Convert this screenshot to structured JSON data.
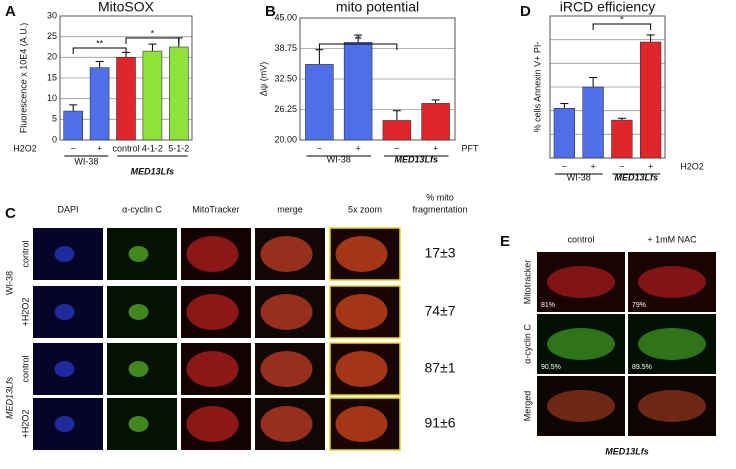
{
  "chart_data": [
    {
      "type": "bar",
      "panel": "A",
      "title": "MitoSOX",
      "ylabel": "Fluorescence x 10E4 (A.U.)",
      "treatment": "H2O2",
      "categories": [
        "−",
        "+",
        "control",
        "4-1-2",
        "5-1-2"
      ],
      "values": [
        7,
        17.5,
        20,
        21.5,
        22.5
      ],
      "errors": [
        1.5,
        1.5,
        1.2,
        1.7,
        2.2
      ],
      "colors": [
        "#4f6fe8",
        "#4f6fe8",
        "#e0262a",
        "#8fe23a",
        "#8fe23a"
      ],
      "groups": [
        "WI-38",
        "MED13Lfs"
      ],
      "annotations": [
        "**",
        "*"
      ],
      "ylim": [
        0,
        30
      ],
      "yticks": [
        0,
        5,
        10,
        15,
        20,
        25,
        30
      ],
      "grid": true
    },
    {
      "type": "bar",
      "panel": "B",
      "title": "mito potential",
      "ylabel": "Δψ (mV)",
      "treatment": "PFT",
      "categories": [
        "−",
        "+",
        "−",
        "+"
      ],
      "values": [
        35.5,
        40,
        24,
        27.5
      ],
      "errors": [
        3,
        1.5,
        2,
        0.7
      ],
      "colors": [
        "#4f6fe8",
        "#4f6fe8",
        "#e0262a",
        "#e0262a"
      ],
      "groups": [
        "WI-38",
        "MED13Lfs"
      ],
      "annotations": [
        "**"
      ],
      "ylim": [
        20,
        45
      ],
      "yticks": [
        {
          "value": 20,
          "label": "20.00"
        },
        {
          "value": 26.25,
          "label": "26.25"
        },
        {
          "value": 32.5,
          "label": "32.50"
        },
        {
          "value": 38.75,
          "label": "38.75"
        },
        {
          "value": 45,
          "label": "45.00"
        }
      ],
      "grid": true
    },
    {
      "type": "bar",
      "panel": "D",
      "title": "iRCD efficiency",
      "ylabel": "% cells Annexin V+ PI-",
      "treatment": "H2O2",
      "categories": [
        "−",
        "+",
        "−",
        "+"
      ],
      "values": [
        10.5,
        15,
        8,
        24.5
      ],
      "errors": [
        1,
        2,
        0.4,
        1.5
      ],
      "colors": [
        "#4f6fe8",
        "#4f6fe8",
        "#e0262a",
        "#e0262a"
      ],
      "groups": [
        "WI-38",
        "MED13Lfs"
      ],
      "annotations": [
        "*"
      ],
      "ylim": [
        0,
        30
      ],
      "yticks": [
        5,
        10,
        15,
        20,
        25,
        30
      ],
      "ytick_labels": false,
      "grid": true
    }
  ],
  "panel_c": {
    "letter": "C",
    "columns": [
      "DAPI",
      "α-cyclin C",
      "MitoTracker",
      "merge",
      "5x zoom"
    ],
    "result_header": [
      "% mito",
      "fragmentation"
    ],
    "rows": [
      "control",
      "+H2O2",
      "control",
      "+H2O2"
    ],
    "groups": [
      "WI-38",
      "MED13Lfs"
    ],
    "results": [
      "17±3",
      "74±7",
      "87±1",
      "91±6"
    ]
  },
  "panel_e": {
    "letter": "E",
    "columns": [
      "control",
      "+ 1mM NAC"
    ],
    "rows": [
      "Mitotracker",
      "α-cyclin C",
      "Merged"
    ],
    "percentages": [
      [
        "81%",
        "79%"
      ],
      [
        "90.5%",
        "89.5%"
      ]
    ],
    "caption": "MED13Lfs"
  }
}
